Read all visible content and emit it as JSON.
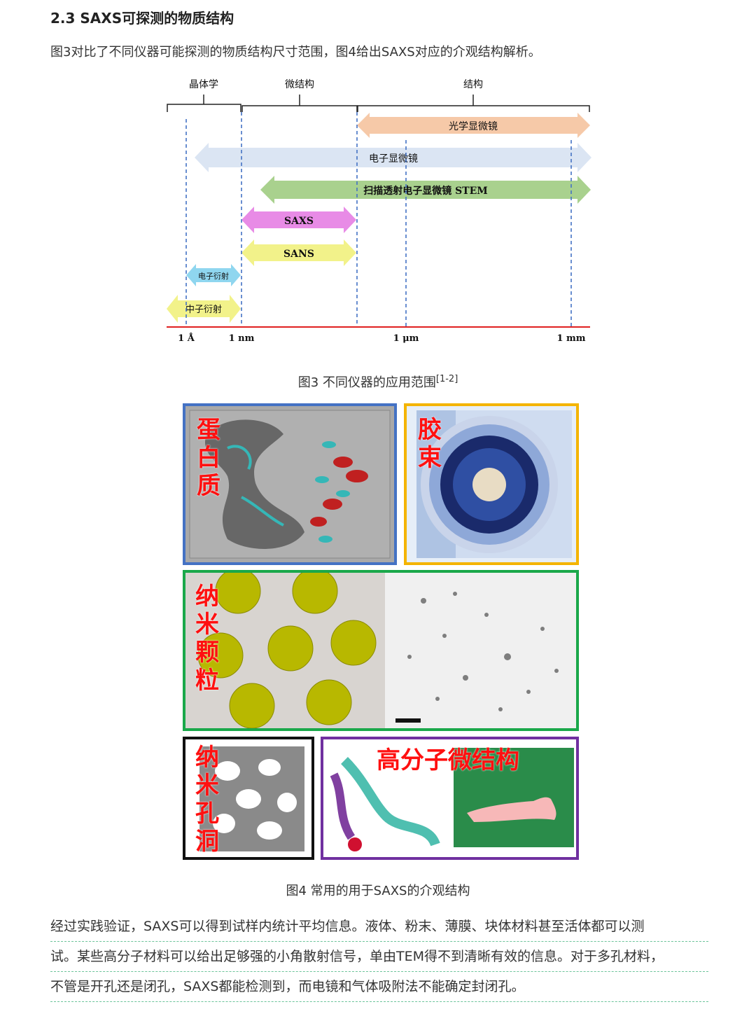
{
  "section": {
    "heading": "2.3 SAXS可探测的物质结构",
    "intro": "图3对比了不同仪器可能探测的物质结构尺寸范围，图4给出SAXS对应的介观结构解析。"
  },
  "figure3": {
    "categories": [
      "晶体学",
      "微结构",
      "结构"
    ],
    "bars": [
      {
        "label": "光学显微镜",
        "color": "#f6c9a8"
      },
      {
        "label": "电子显微镜",
        "color": "#dbe5f3"
      },
      {
        "label": "扫描透射电子显微镜 STEM",
        "color": "#a9d18e"
      },
      {
        "label": "SAXS",
        "color": "#e88be6"
      },
      {
        "label": "SANS",
        "color": "#f2f28a"
      },
      {
        "label": "电子衍射",
        "color": "#8fd6ef"
      },
      {
        "label": "中子衍射",
        "color": "#f2f28a"
      }
    ],
    "ticks": [
      "1 Å",
      "1 nm",
      "1 μm",
      "1 mm"
    ],
    "caption": "图3 不同仪器的应用范围",
    "caption_ref": "[1-2]"
  },
  "figure4": {
    "panels": {
      "protein": {
        "label": "蛋白质",
        "border": "#4472c4"
      },
      "micelle": {
        "label": "胶束",
        "border": "#f4b400"
      },
      "nanoparticle": {
        "label": "纳米颗粒",
        "border": "#1aa84a"
      },
      "nanopore": {
        "label": "纳米孔洞",
        "border": "#111111"
      },
      "polymer": {
        "label": "高分子微结构",
        "border": "#7030a0"
      }
    },
    "caption": "图4 常用的用于SAXS的介观结构"
  },
  "paragraph": {
    "lines": [
      "经过实践验证，SAXS可以得到试样内统计平均信息。液体、粉末、薄膜、块体材料甚至活体都可以测",
      "试。某些高分子材料可以给出足够强的小角散射信号，单由TEM得不到清晰有效的信息。对于多孔材料，",
      "不管是开孔还是闭孔，SAXS都能检测到，而电镜和气体吸附法不能确定封闭孔。"
    ]
  }
}
